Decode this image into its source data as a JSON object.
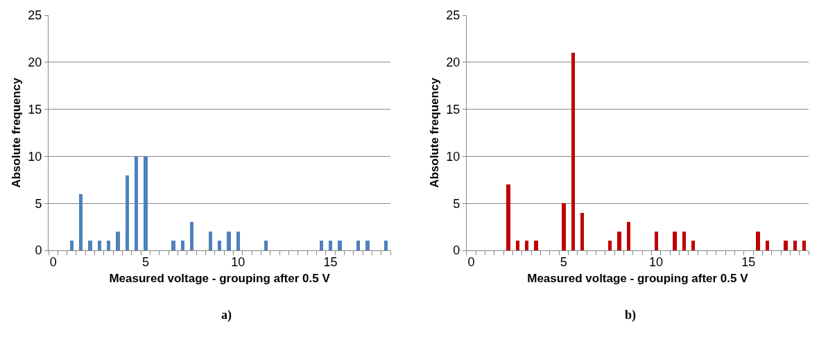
{
  "chart_data": [
    {
      "type": "bar",
      "xlabel": "Measured voltage - grouping after 0.5 V",
      "ylabel": "Absolute frequency",
      "annotations": [
        "a)"
      ],
      "categories": [
        "0",
        null,
        null,
        null,
        null,
        null,
        null,
        null,
        null,
        null,
        "5",
        null,
        null,
        null,
        null,
        null,
        null,
        null,
        null,
        null,
        "10",
        null,
        null,
        null,
        null,
        null,
        null,
        null,
        null,
        null,
        "15",
        null,
        null,
        null,
        null,
        null,
        null
      ],
      "values": [
        0,
        0,
        1,
        6,
        1,
        1,
        1,
        2,
        8,
        10,
        10,
        0,
        0,
        1,
        1,
        3,
        0,
        2,
        1,
        2,
        2,
        0,
        0,
        1,
        0,
        0,
        0,
        0,
        0,
        1,
        1,
        1,
        0,
        1,
        1,
        0,
        1
      ],
      "color": "#4f81bd",
      "ylim": [
        0,
        25
      ],
      "yticks": [
        0,
        5,
        10,
        15,
        20,
        25
      ],
      "grid": "y"
    },
    {
      "type": "bar",
      "xlabel": "Measured voltage - grouping after 0.5 V",
      "ylabel": "Absolute frequency",
      "annotations": [
        "b)"
      ],
      "categories": [
        "0",
        null,
        null,
        null,
        null,
        null,
        null,
        null,
        null,
        null,
        "5",
        null,
        null,
        null,
        null,
        null,
        null,
        null,
        null,
        null,
        "10",
        null,
        null,
        null,
        null,
        null,
        null,
        null,
        null,
        null,
        "15",
        null,
        null,
        null,
        null,
        null,
        null
      ],
      "values": [
        0,
        0,
        0,
        0,
        7,
        1,
        1,
        1,
        0,
        0,
        5,
        21,
        4,
        0,
        0,
        1,
        2,
        3,
        0,
        0,
        2,
        0,
        2,
        2,
        1,
        0,
        0,
        0,
        0,
        0,
        0,
        2,
        1,
        0,
        1,
        1,
        1
      ],
      "color": "#c00000",
      "ylim": [
        0,
        25
      ],
      "yticks": [
        0,
        5,
        10,
        15,
        20,
        25
      ],
      "grid": "y"
    }
  ]
}
